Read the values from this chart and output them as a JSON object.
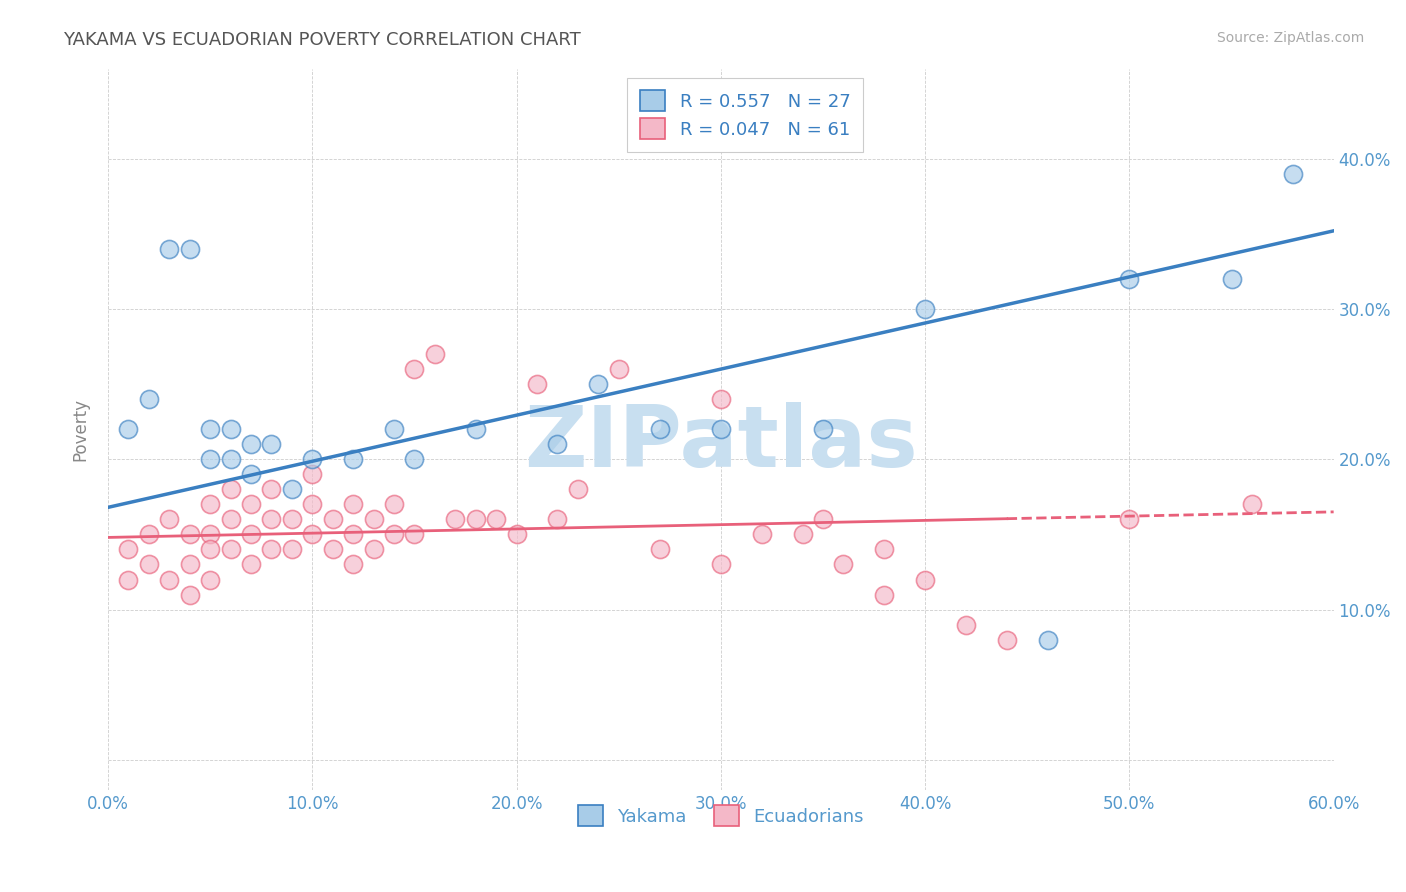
{
  "title": "YAKAMA VS ECUADORIAN POVERTY CORRELATION CHART",
  "source": "Source: ZipAtlas.com",
  "ylabel": "Poverty",
  "watermark": "ZIPatlas",
  "xlim": [
    0.0,
    0.6
  ],
  "ylim": [
    -0.02,
    0.46
  ],
  "xticks": [
    0.0,
    0.1,
    0.2,
    0.3,
    0.4,
    0.5,
    0.6
  ],
  "yticks": [
    0.0,
    0.1,
    0.2,
    0.3,
    0.4
  ],
  "xtick_labels": [
    "0.0%",
    "10.0%",
    "20.0%",
    "30.0%",
    "40.0%",
    "50.0%",
    "60.0%"
  ],
  "ytick_labels": [
    "",
    "10.0%",
    "20.0%",
    "30.0%",
    "40.0%"
  ],
  "legend_labels": [
    "Yakama",
    "Ecuadorians"
  ],
  "R_yakama": "0.557",
  "N_yakama": 27,
  "R_ecuador": "0.047",
  "N_ecuador": 61,
  "color_blue": "#a8cce8",
  "color_pink": "#f4b8c8",
  "color_blue_line": "#3a7fc1",
  "color_pink_line": "#e8607a",
  "title_color": "#555555",
  "axis_label_color": "#5599cc",
  "legend_text_color": "#3a7fc1",
  "watermark_color": "#c8dff0",
  "background_color": "#ffffff",
  "grid_color": "#c8c8c8",
  "blue_line_x0": 0.0,
  "blue_line_y0": 0.168,
  "blue_line_x1": 0.6,
  "blue_line_y1": 0.352,
  "pink_line_x0": 0.0,
  "pink_line_y0": 0.148,
  "pink_line_x1": 0.6,
  "pink_line_y1": 0.165,
  "yakama_x": [
    0.01,
    0.02,
    0.03,
    0.04,
    0.05,
    0.05,
    0.06,
    0.06,
    0.07,
    0.07,
    0.08,
    0.09,
    0.1,
    0.12,
    0.14,
    0.15,
    0.18,
    0.22,
    0.24,
    0.27,
    0.3,
    0.35,
    0.4,
    0.46,
    0.5,
    0.55,
    0.58
  ],
  "yakama_y": [
    0.22,
    0.24,
    0.34,
    0.34,
    0.2,
    0.22,
    0.2,
    0.22,
    0.19,
    0.21,
    0.21,
    0.18,
    0.2,
    0.2,
    0.22,
    0.2,
    0.22,
    0.21,
    0.25,
    0.22,
    0.22,
    0.22,
    0.3,
    0.08,
    0.32,
    0.32,
    0.39
  ],
  "ecuador_x": [
    0.01,
    0.01,
    0.02,
    0.02,
    0.03,
    0.03,
    0.04,
    0.04,
    0.04,
    0.05,
    0.05,
    0.05,
    0.05,
    0.06,
    0.06,
    0.06,
    0.07,
    0.07,
    0.07,
    0.08,
    0.08,
    0.08,
    0.09,
    0.09,
    0.1,
    0.1,
    0.1,
    0.11,
    0.11,
    0.12,
    0.12,
    0.12,
    0.13,
    0.13,
    0.14,
    0.14,
    0.15,
    0.15,
    0.16,
    0.17,
    0.18,
    0.19,
    0.2,
    0.21,
    0.22,
    0.23,
    0.25,
    0.27,
    0.3,
    0.3,
    0.32,
    0.34,
    0.35,
    0.36,
    0.38,
    0.38,
    0.4,
    0.42,
    0.44,
    0.5,
    0.56
  ],
  "ecuador_y": [
    0.12,
    0.14,
    0.15,
    0.13,
    0.16,
    0.12,
    0.15,
    0.13,
    0.11,
    0.17,
    0.15,
    0.14,
    0.12,
    0.18,
    0.16,
    0.14,
    0.17,
    0.15,
    0.13,
    0.18,
    0.16,
    0.14,
    0.16,
    0.14,
    0.19,
    0.17,
    0.15,
    0.16,
    0.14,
    0.17,
    0.15,
    0.13,
    0.16,
    0.14,
    0.17,
    0.15,
    0.26,
    0.15,
    0.27,
    0.16,
    0.16,
    0.16,
    0.15,
    0.25,
    0.16,
    0.18,
    0.26,
    0.14,
    0.24,
    0.13,
    0.15,
    0.15,
    0.16,
    0.13,
    0.14,
    0.11,
    0.12,
    0.09,
    0.08,
    0.16,
    0.17
  ]
}
